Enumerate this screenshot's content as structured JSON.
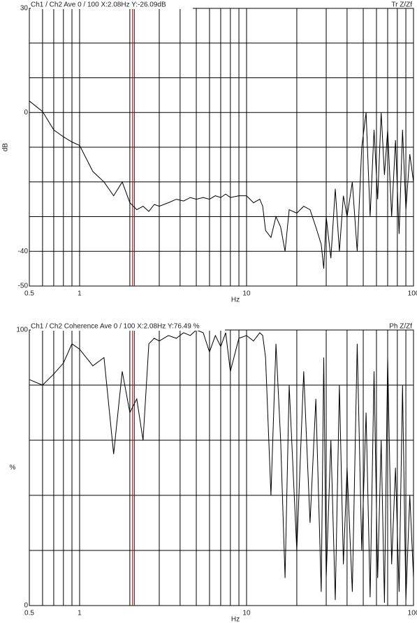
{
  "chart_data": [
    {
      "type": "line",
      "header_left": "Ch1 / Ch2  Ave 0 / 100  X:2.08Hz  Y:-26.09dB",
      "header_right": "Tr Z/Zf",
      "ylabel": "dB",
      "xlabel": "Hz",
      "xscale": "log",
      "cursor_x": 2.08,
      "cursor_color": "#cc0000",
      "xlim": [
        0.5,
        100
      ],
      "xticks": [
        0.5,
        1,
        10,
        100
      ],
      "xgrid": [
        0.5,
        0.6,
        0.7,
        0.8,
        0.9,
        1,
        2,
        3,
        4,
        5,
        6,
        7,
        8,
        9,
        10,
        20,
        30,
        40,
        50,
        60,
        70,
        80,
        90,
        100
      ],
      "ylim": [
        -50,
        30
      ],
      "yticks": [
        30,
        0,
        -40,
        -50
      ],
      "ygrid": [
        30,
        20,
        10,
        0,
        -10,
        -20,
        -30,
        -40,
        -50
      ],
      "x": [
        0.5,
        0.6,
        0.7,
        0.8,
        0.9,
        1,
        1.2,
        1.4,
        1.6,
        1.8,
        2,
        2.2,
        2.4,
        2.6,
        2.8,
        3,
        3.4,
        3.8,
        4.2,
        4.6,
        5,
        5.5,
        6,
        6.5,
        7,
        7.5,
        8,
        9,
        10,
        11,
        12,
        12.5,
        13,
        14,
        15,
        16,
        17,
        18,
        20,
        22,
        24,
        26,
        28,
        29,
        30,
        32,
        34,
        36,
        38,
        40,
        43,
        46,
        49,
        52,
        55,
        58,
        61,
        64,
        67,
        70,
        74,
        78,
        82,
        86,
        90,
        95,
        100
      ],
      "series": [
        {
          "color": "#000000",
          "values": [
            3.3,
            0.3,
            -5,
            -7,
            -8.5,
            -9.5,
            -17,
            -20,
            -24,
            -20,
            -26,
            -28,
            -27,
            -28.5,
            -26.5,
            -27,
            -26,
            -25,
            -25.5,
            -24.5,
            -25,
            -24.5,
            -25,
            -24,
            -24.5,
            -23.5,
            -24.5,
            -24,
            -24,
            -26,
            -25,
            -27,
            -34,
            -36,
            -30,
            -33,
            -40,
            -28,
            -29,
            -27,
            -28,
            -33,
            -38,
            -45,
            -30,
            -42,
            -22,
            -40,
            -24,
            -30,
            -20,
            -40,
            -10,
            0,
            -30,
            -5,
            -25,
            0,
            -18,
            -5,
            -30,
            -8,
            -35,
            -5,
            -28,
            -12,
            -20
          ]
        }
      ]
    },
    {
      "type": "line",
      "header_left": "Ch1 / Ch2  Coherence Ave 0 / 100  X:2.08Hz  Y:76.49 %",
      "header_right": "Ph Z/Zf",
      "ylabel": "%",
      "xlabel": "Hz",
      "xscale": "log",
      "cursor_x": 2.08,
      "cursor_color": "#cc0000",
      "xlim": [
        0.5,
        100
      ],
      "xticks": [
        0.5,
        1,
        10,
        100
      ],
      "xgrid": [
        0.5,
        0.6,
        0.7,
        0.8,
        0.9,
        1,
        2,
        3,
        4,
        5,
        6,
        7,
        8,
        9,
        10,
        20,
        30,
        40,
        50,
        60,
        70,
        80,
        90,
        100
      ],
      "ylim": [
        0,
        100
      ],
      "yticks": [
        100,
        0
      ],
      "ygrid": [
        100,
        80,
        60,
        40,
        20,
        0
      ],
      "x": [
        0.5,
        0.6,
        0.7,
        0.8,
        0.9,
        1,
        1.2,
        1.4,
        1.6,
        1.8,
        2,
        2.2,
        2.4,
        2.6,
        2.8,
        3,
        3.4,
        3.8,
        4.2,
        4.6,
        5,
        5.5,
        6,
        6.5,
        7,
        7.5,
        8,
        9,
        10,
        11,
        12,
        12.5,
        13,
        14,
        15,
        16,
        17,
        18,
        20,
        22,
        24,
        26,
        28,
        29,
        30,
        32,
        34,
        36,
        38,
        40,
        43,
        46,
        49,
        52,
        55,
        58,
        61,
        64,
        67,
        70,
        74,
        78,
        82,
        86,
        90,
        95,
        100
      ],
      "series": [
        {
          "color": "#000000",
          "values": [
            82,
            80,
            84,
            88,
            95,
            93,
            87,
            90,
            55,
            85,
            70,
            75,
            60,
            95,
            97,
            96,
            98,
            97,
            99,
            98,
            100,
            99,
            92,
            98,
            94,
            99,
            85,
            97,
            98,
            96,
            99,
            98,
            90,
            40,
            95,
            60,
            10,
            80,
            20,
            85,
            30,
            75,
            5,
            90,
            10,
            60,
            2,
            80,
            15,
            50,
            5,
            95,
            20,
            70,
            3,
            85,
            10,
            60,
            1,
            90,
            15,
            50,
            5,
            80,
            2,
            40,
            10
          ]
        }
      ]
    }
  ]
}
